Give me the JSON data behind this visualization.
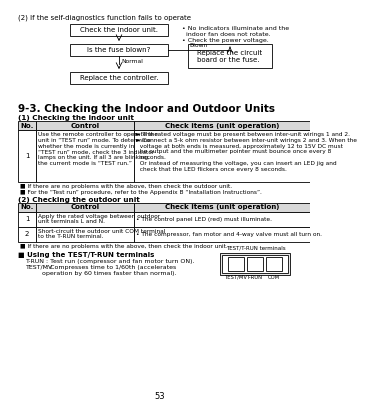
{
  "title_top": "(2) If the self-diagnostics function fails to operate",
  "section_title": "9-3. Checking the Indoor and Outdoor Units",
  "subsection1": "(1) Checking the indoor unit",
  "subsection2": "(2) Checking the outdoor unit",
  "flowchart": {
    "box1": "Check the indoor unit.",
    "box2": "Is the fuse blown?",
    "box3": "Replace the controller.",
    "box4": "Replace the circuit\nboard or the fuse.",
    "label_normal": "Normal",
    "label_blown": "Blown",
    "bullet1": "• No indicators illuminate and the",
    "bullet1b": "  indoor fan does not rotate.",
    "bullet2": "• Check the power voltage."
  },
  "table1_headers": [
    "No.",
    "Control",
    "Check items (unit operation)"
  ],
  "table1_row1_no": "1",
  "table1_row1_ctrl": "Use the remote controller to operate the\nunit in “TEST run” mode. To determine\nwhether the mode is currently in\n“TEST run” mode, check the 3 indicator\nlamps on the unit. If all 3 are blinking,\nthe current mode is “TEST run.”",
  "table1_row1_check": "► The rated voltage must be present between inter-unit wirings 1 and 2.\n► Connect a 5-k ohm resistor between inter-unit wirings 2 and 3. When the\n  voltage at both ends is measured, approximately 12 to 15V DC must\n  be output and the multimeter pointer must bounce once every 8\n  seconds.\n  Or instead of measuring the voltage, you can insert an LED jig and\n  check that the LED flickers once every 8 seconds.",
  "table1_fn1": "■ If there are no problems with the above, then check the outdoor unit.",
  "table1_fn2": "■ For the “Test run” procedure, refer to the Appendix B “Installation Instructions”.",
  "table2_headers": [
    "No.",
    "Control",
    "Check items (unit operation)"
  ],
  "table2_rows": [
    [
      "1",
      "Apply the rated voltage between outdoor\nunit terminals L and N.",
      "• The control panel LED (red) must illuminate."
    ],
    [
      "2",
      "Short-circuit the outdoor unit COM terminal\nto the T-RUN terminal.",
      "• The compressor, fan motor and 4-way valve must all turn on."
    ]
  ],
  "table2_fn1": "■ If there are no problems with the above, then check the indoor unit.",
  "using_title": "■ Using the TEST/T-RUN terminals",
  "trun_label": "T-RUN",
  "trun_desc": "   : Test run (compressor and fan motor turn ON).",
  "testmv_label": "TEST/MV",
  "testmv_desc": "   : Compresses time to 1/60th (accelerates",
  "testmv_desc2": "        operation by 60 times faster than normal).",
  "terminal_title": "TEST/T-RUN terminals",
  "terminal_labels": [
    "TEST/MV",
    "T-RUN",
    "COM"
  ],
  "page_number": "53",
  "bg_color": "#ffffff",
  "text_color": "#000000"
}
